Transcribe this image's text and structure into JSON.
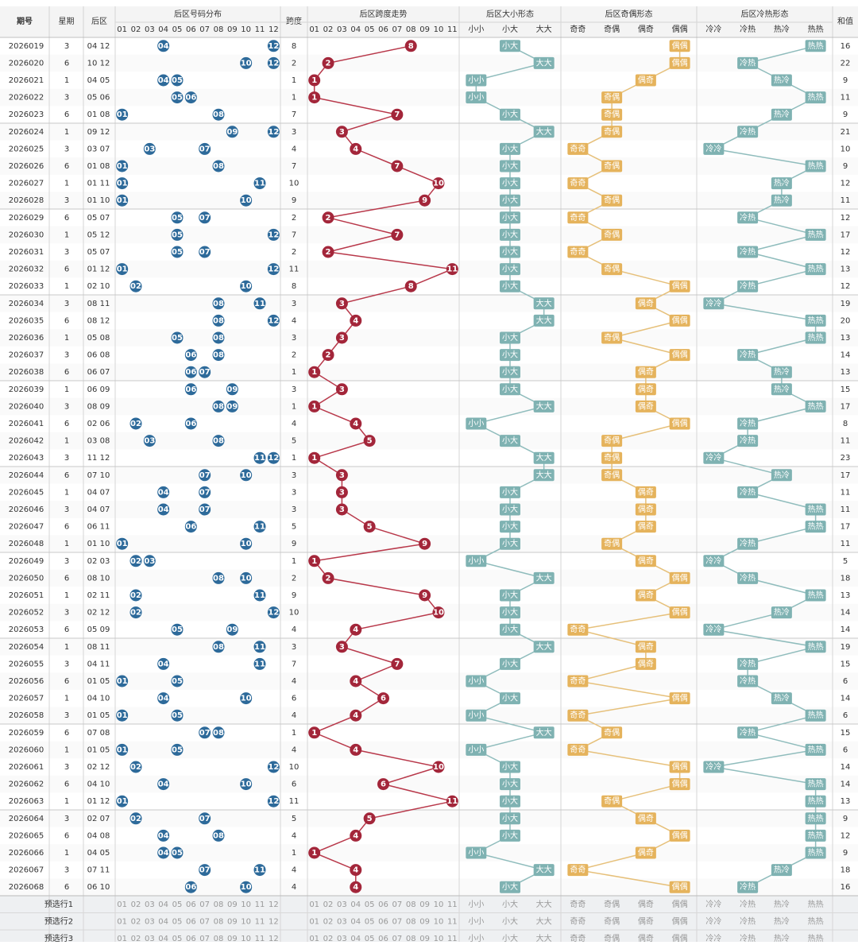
{
  "table": {
    "headers": [
      "期号",
      "星期",
      "后区",
      "后区号码分布",
      "跨度",
      "后区跨度走势",
      "后区大小形态",
      "后区奇偶形态",
      "后区冷热形态",
      "和值"
    ],
    "num_cols": [
      "01",
      "02",
      "03",
      "04",
      "05",
      "06",
      "07",
      "08",
      "09",
      "10",
      "11",
      "12"
    ],
    "span_cols": [
      "01",
      "02",
      "03",
      "04",
      "05",
      "06",
      "07",
      "08",
      "09",
      "10",
      "11"
    ],
    "size_cols": [
      "小小",
      "小大",
      "大大"
    ],
    "parity_cols": [
      "奇奇",
      "奇偶",
      "偶奇",
      "偶偶"
    ],
    "hot_cols": [
      "冷冷",
      "冷热",
      "热冷",
      "热热"
    ],
    "footer": [
      "预选行1",
      "预选行2",
      "预选行3"
    ],
    "rows": [
      [
        "2026019",
        3,
        "04",
        "12",
        8,
        "小大",
        "偶偶",
        "热热",
        16
      ],
      [
        "2026020",
        6,
        "10",
        "12",
        2,
        "大大",
        "偶偶",
        "冷热",
        22
      ],
      [
        "2026021",
        1,
        "04",
        "05",
        1,
        "小小",
        "偶奇",
        "热冷",
        9
      ],
      [
        "2026022",
        3,
        "05",
        "06",
        1,
        "小小",
        "奇偶",
        "热热",
        11
      ],
      [
        "2026023",
        6,
        "01",
        "08",
        7,
        "小大",
        "奇偶",
        "热冷",
        9
      ],
      [
        "2026024",
        1,
        "09",
        "12",
        3,
        "大大",
        "奇偶",
        "冷热",
        21
      ],
      [
        "2026025",
        3,
        "03",
        "07",
        4,
        "小大",
        "奇奇",
        "冷冷",
        10
      ],
      [
        "2026026",
        6,
        "01",
        "08",
        7,
        "小大",
        "奇偶",
        "热热",
        9
      ],
      [
        "2026027",
        1,
        "01",
        "11",
        10,
        "小大",
        "奇奇",
        "热冷",
        12
      ],
      [
        "2026028",
        3,
        "01",
        "10",
        9,
        "小大",
        "奇偶",
        "热冷",
        11
      ],
      [
        "2026029",
        6,
        "05",
        "07",
        2,
        "小大",
        "奇奇",
        "冷热",
        12
      ],
      [
        "2026030",
        1,
        "05",
        "12",
        7,
        "小大",
        "奇偶",
        "热热",
        17
      ],
      [
        "2026031",
        3,
        "05",
        "07",
        2,
        "小大",
        "奇奇",
        "冷热",
        12
      ],
      [
        "2026032",
        6,
        "01",
        "12",
        11,
        "小大",
        "奇偶",
        "热热",
        13
      ],
      [
        "2026033",
        1,
        "02",
        "10",
        8,
        "小大",
        "偶偶",
        "冷热",
        12
      ],
      [
        "2026034",
        3,
        "08",
        "11",
        3,
        "大大",
        "偶奇",
        "冷冷",
        19
      ],
      [
        "2026035",
        6,
        "08",
        "12",
        4,
        "大大",
        "偶偶",
        "热热",
        20
      ],
      [
        "2026036",
        1,
        "05",
        "08",
        3,
        "小大",
        "奇偶",
        "热热",
        13
      ],
      [
        "2026037",
        3,
        "06",
        "08",
        2,
        "小大",
        "偶偶",
        "冷热",
        14
      ],
      [
        "2026038",
        6,
        "06",
        "07",
        1,
        "小大",
        "偶奇",
        "热冷",
        13
      ],
      [
        "2026039",
        1,
        "06",
        "09",
        3,
        "小大",
        "偶奇",
        "热冷",
        15
      ],
      [
        "2026040",
        3,
        "08",
        "09",
        1,
        "大大",
        "偶奇",
        "热热",
        17
      ],
      [
        "2026041",
        6,
        "02",
        "06",
        4,
        "小小",
        "偶偶",
        "冷热",
        8
      ],
      [
        "2026042",
        1,
        "03",
        "08",
        5,
        "小大",
        "奇偶",
        "冷热",
        11
      ],
      [
        "2026043",
        3,
        "11",
        "12",
        1,
        "大大",
        "奇偶",
        "冷冷",
        23
      ],
      [
        "2026044",
        6,
        "07",
        "10",
        3,
        "大大",
        "奇偶",
        "热冷",
        17
      ],
      [
        "2026045",
        1,
        "04",
        "07",
        3,
        "小大",
        "偶奇",
        "冷热",
        11
      ],
      [
        "2026046",
        3,
        "04",
        "07",
        3,
        "小大",
        "偶奇",
        "热热",
        11
      ],
      [
        "2026047",
        6,
        "06",
        "11",
        5,
        "小大",
        "偶奇",
        "热热",
        17
      ],
      [
        "2026048",
        1,
        "01",
        "10",
        9,
        "小大",
        "奇偶",
        "冷热",
        11
      ],
      [
        "2026049",
        3,
        "02",
        "03",
        1,
        "小小",
        "偶奇",
        "冷冷",
        5
      ],
      [
        "2026050",
        6,
        "08",
        "10",
        2,
        "大大",
        "偶偶",
        "冷热",
        18
      ],
      [
        "2026051",
        1,
        "02",
        "11",
        9,
        "小大",
        "偶奇",
        "热热",
        13
      ],
      [
        "2026052",
        3,
        "02",
        "12",
        10,
        "小大",
        "偶偶",
        "热冷",
        14
      ],
      [
        "2026053",
        6,
        "05",
        "09",
        4,
        "小大",
        "奇奇",
        "冷冷",
        14
      ],
      [
        "2026054",
        1,
        "08",
        "11",
        3,
        "大大",
        "偶奇",
        "热热",
        19
      ],
      [
        "2026055",
        3,
        "04",
        "11",
        7,
        "小大",
        "偶奇",
        "冷热",
        15
      ],
      [
        "2026056",
        6,
        "01",
        "05",
        4,
        "小小",
        "奇奇",
        "冷热",
        6
      ],
      [
        "2026057",
        1,
        "04",
        "10",
        6,
        "小大",
        "偶偶",
        "热冷",
        14
      ],
      [
        "2026058",
        3,
        "01",
        "05",
        4,
        "小小",
        "奇奇",
        "热热",
        6
      ],
      [
        "2026059",
        6,
        "07",
        "08",
        1,
        "大大",
        "奇偶",
        "冷热",
        15
      ],
      [
        "2026060",
        1,
        "01",
        "05",
        4,
        "小小",
        "奇奇",
        "热热",
        6
      ],
      [
        "2026061",
        3,
        "02",
        "12",
        10,
        "小大",
        "偶偶",
        "冷冷",
        14
      ],
      [
        "2026062",
        6,
        "04",
        "10",
        6,
        "小大",
        "偶偶",
        "热热",
        14
      ],
      [
        "2026063",
        1,
        "01",
        "12",
        11,
        "小大",
        "奇偶",
        "热热",
        13
      ],
      [
        "2026064",
        3,
        "02",
        "07",
        5,
        "小大",
        "偶奇",
        "热热",
        9
      ],
      [
        "2026065",
        6,
        "04",
        "08",
        4,
        "小大",
        "偶偶",
        "热热",
        12
      ],
      [
        "2026066",
        1,
        "04",
        "05",
        1,
        "小小",
        "偶奇",
        "热热",
        9
      ],
      [
        "2026067",
        3,
        "07",
        "11",
        4,
        "大大",
        "奇奇",
        "热冷",
        18
      ],
      [
        "2026068",
        6,
        "06",
        "10",
        4,
        "小大",
        "偶偶",
        "冷热",
        16
      ]
    ]
  }
}
